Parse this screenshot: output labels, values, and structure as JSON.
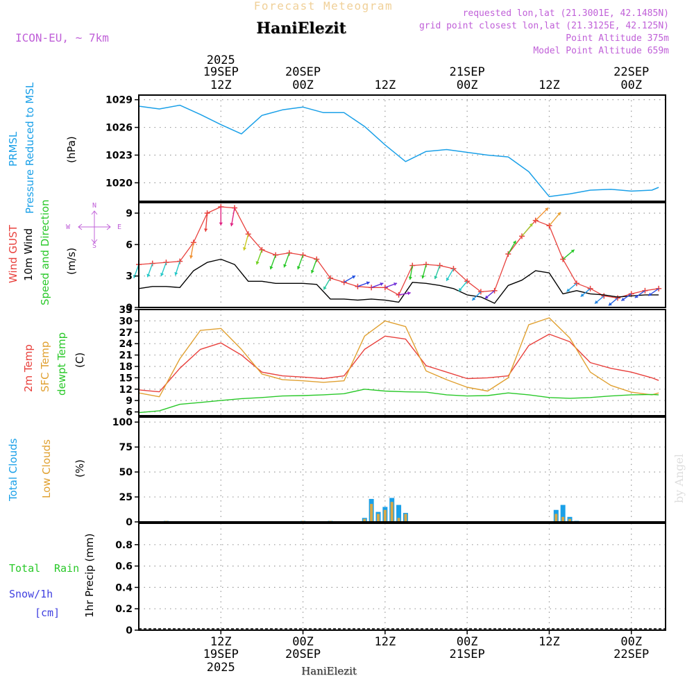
{
  "header": {
    "forecast_title": "Forecast Meteogram",
    "location_name": "HaniElezit",
    "model_label": "ICON-EU, ~ 7km",
    "requested": "requested lon,lat (21.3001E, 42.1485N)",
    "grid_point": "grid point closest lon,lat (21.3125E, 42.125N)",
    "point_altitude": "Point Altitude 375m",
    "model_altitude": "Model Point Altitude 659m",
    "footer_name": "HaniElezit",
    "watermark": "by Angel"
  },
  "colors": {
    "pressure": "#1aa0e8",
    "gust": "#e8403c",
    "wind": "#000000",
    "t2m": "#e8403c",
    "sfc": "#e0a030",
    "dewpt": "#28c828",
    "total_clouds": "#1aa0e8",
    "low_clouds": "#d8a848",
    "rain": "#28c828",
    "snow": "#4040e0",
    "label_purple": "#c060d8",
    "grid": "#888888"
  },
  "time_axis": {
    "top": [
      {
        "h": 12,
        "line1": "2025",
        "line2": "19SEP",
        "line3": "12Z"
      },
      {
        "h": 24,
        "line1": "",
        "line2": "20SEP",
        "line3": "00Z"
      },
      {
        "h": 36,
        "line1": "",
        "line2": "",
        "line3": "12Z"
      },
      {
        "h": 48,
        "line1": "",
        "line2": "21SEP",
        "line3": "00Z"
      },
      {
        "h": 60,
        "line1": "",
        "line2": "",
        "line3": "12Z"
      },
      {
        "h": 72,
        "line1": "",
        "line2": "22SEP",
        "line3": "00Z"
      }
    ],
    "bottom": [
      {
        "h": 12,
        "line1": "12Z",
        "line2": "19SEP",
        "line3": "2025"
      },
      {
        "h": 24,
        "line1": "00Z",
        "line2": "20SEP",
        "line3": ""
      },
      {
        "h": 36,
        "line1": "12Z",
        "line2": "",
        "line3": ""
      },
      {
        "h": 48,
        "line1": "00Z",
        "line2": "21SEP",
        "line3": ""
      },
      {
        "h": 60,
        "line1": "12Z",
        "line2": "",
        "line3": ""
      },
      {
        "h": 72,
        "line1": "00Z",
        "line2": "22SEP",
        "line3": ""
      }
    ]
  },
  "panel_labels": {
    "pressure": {
      "line1": "PRMSL",
      "line2": "Pressure Reduced to MSL",
      "unit": "(hPa)"
    },
    "wind": {
      "gust": "Wind GUST",
      "wind10m": "10m Wind",
      "speed_dir": "Speed and Direction",
      "unit": "(m/s)",
      "compass_n": "N",
      "compass_s": "S",
      "compass_e": "E",
      "compass_w": "W"
    },
    "temp": {
      "t2m": "2m Temp",
      "sfc": "SFC Temp",
      "dewpt": "dewpt Temp",
      "unit": "(C)"
    },
    "clouds": {
      "total": "Total Clouds",
      "low": "Low Clouds",
      "unit": "(%)"
    },
    "precip": {
      "rain_total": "Total",
      "rain": "Rain",
      "snow": "Snow/1h",
      "snow_unit": "[cm]",
      "precip_label": "1hr Precip (mm)"
    }
  },
  "chart_data": [
    {
      "type": "line",
      "name": "pressure",
      "title": "PRMSL Pressure Reduced to MSL",
      "ylabel": "(hPa)",
      "ylim": [
        1018,
        1029.5
      ],
      "yticks": [
        1020,
        1023,
        1026,
        1029
      ],
      "x_hours": [
        0,
        3,
        6,
        9,
        12,
        15,
        18,
        21,
        24,
        27,
        30,
        33,
        36,
        39,
        42,
        45,
        48,
        51,
        54,
        57,
        60,
        63,
        66,
        69,
        72,
        75,
        76
      ],
      "series": [
        {
          "name": "PRMSL",
          "values": [
            1028.3,
            1028.0,
            1028.4,
            1027.4,
            1026.3,
            1025.3,
            1027.3,
            1027.9,
            1028.2,
            1027.6,
            1027.6,
            1026.1,
            1024.1,
            1022.3,
            1023.4,
            1023.6,
            1023.3,
            1023.0,
            1022.8,
            1021.2,
            1018.5,
            1018.8,
            1019.2,
            1019.3,
            1019.1,
            1019.2,
            1019.5
          ]
        }
      ]
    },
    {
      "type": "line",
      "name": "wind",
      "title": "Wind GUST / 10m Wind Speed and Direction",
      "ylabel": "(m/s)",
      "ylim": [
        0,
        10
      ],
      "yticks": [
        0,
        3,
        6,
        9
      ],
      "x_hours": [
        0,
        2,
        4,
        6,
        8,
        10,
        12,
        14,
        16,
        18,
        20,
        22,
        24,
        26,
        28,
        30,
        32,
        34,
        36,
        38,
        40,
        42,
        44,
        46,
        48,
        50,
        52,
        54,
        56,
        58,
        60,
        62,
        64,
        66,
        68,
        70,
        72,
        74,
        76
      ],
      "series": [
        {
          "name": "Wind GUST",
          "values": [
            4.1,
            4.2,
            4.3,
            4.4,
            6.2,
            9.0,
            9.6,
            9.5,
            7.0,
            5.5,
            5.0,
            5.2,
            5.0,
            4.6,
            2.8,
            2.4,
            2.0,
            1.9,
            1.9,
            1.2,
            4.0,
            4.1,
            4.0,
            3.7,
            2.5,
            1.5,
            1.6,
            5.1,
            6.8,
            8.3,
            7.8,
            4.6,
            2.3,
            1.8,
            1.1,
            0.9,
            1.3,
            1.6,
            1.8
          ]
        },
        {
          "name": "10m Wind",
          "values": [
            1.8,
            2.0,
            2.0,
            1.9,
            3.5,
            4.3,
            4.6,
            4.1,
            2.5,
            2.5,
            2.3,
            2.3,
            2.3,
            2.2,
            0.8,
            0.8,
            0.7,
            0.8,
            0.7,
            0.5,
            2.4,
            2.3,
            2.1,
            1.8,
            1.2,
            1.0,
            0.4,
            2.1,
            2.6,
            3.5,
            3.3,
            1.3,
            1.6,
            1.3,
            1.2,
            1.0,
            1.1,
            1.2,
            1.2
          ]
        }
      ],
      "wind_barbs": [
        {
          "h": 0,
          "dir_from": 20,
          "color": "#22c8c8"
        },
        {
          "h": 2,
          "dir_from": 20,
          "color": "#22c8c8"
        },
        {
          "h": 4,
          "dir_from": 20,
          "color": "#22c8c8"
        },
        {
          "h": 6,
          "dir_from": 18,
          "color": "#22c8c8"
        },
        {
          "h": 8,
          "dir_from": 10,
          "color": "#f09030"
        },
        {
          "h": 10,
          "dir_from": 5,
          "color": "#e8403c"
        },
        {
          "h": 12,
          "dir_from": 0,
          "color": "#e02080"
        },
        {
          "h": 14,
          "dir_from": 10,
          "color": "#e02080"
        },
        {
          "h": 16,
          "dir_from": 15,
          "color": "#c8c820"
        },
        {
          "h": 18,
          "dir_from": 20,
          "color": "#70d020"
        },
        {
          "h": 20,
          "dir_from": 20,
          "color": "#28c828"
        },
        {
          "h": 22,
          "dir_from": 20,
          "color": "#28c828"
        },
        {
          "h": 24,
          "dir_from": 20,
          "color": "#28c828"
        },
        {
          "h": 26,
          "dir_from": 20,
          "color": "#28c828"
        },
        {
          "h": 28,
          "dir_from": 30,
          "color": "#28c8a0"
        },
        {
          "h": 30,
          "dir_from": 240,
          "color": "#2050e0"
        },
        {
          "h": 32,
          "dir_from": 250,
          "color": "#3040e0"
        },
        {
          "h": 34,
          "dir_from": 250,
          "color": "#6030d8"
        },
        {
          "h": 36,
          "dir_from": 250,
          "color": "#7030d8"
        },
        {
          "h": 38,
          "dir_from": 260,
          "color": "#9020d0"
        },
        {
          "h": 40,
          "dir_from": 10,
          "color": "#28c828"
        },
        {
          "h": 42,
          "dir_from": 15,
          "color": "#28c828"
        },
        {
          "h": 44,
          "dir_from": 20,
          "color": "#28c8a0"
        },
        {
          "h": 46,
          "dir_from": 30,
          "color": "#22c8c8"
        },
        {
          "h": 48,
          "dir_from": 40,
          "color": "#22c8c8"
        },
        {
          "h": 50,
          "dir_from": 45,
          "color": "#2090e0"
        },
        {
          "h": 52,
          "dir_from": 50,
          "color": "#6030d8"
        },
        {
          "h": 54,
          "dir_from": 210,
          "color": "#28c828"
        },
        {
          "h": 56,
          "dir_from": 220,
          "color": "#a0d030"
        },
        {
          "h": 58,
          "dir_from": 225,
          "color": "#f09030"
        },
        {
          "h": 60,
          "dir_from": 220,
          "color": "#e8a030"
        },
        {
          "h": 62,
          "dir_from": 230,
          "color": "#28c828"
        },
        {
          "h": 64,
          "dir_from": 50,
          "color": "#22a0e0"
        },
        {
          "h": 66,
          "dir_from": 50,
          "color": "#2090e0"
        },
        {
          "h": 68,
          "dir_from": 50,
          "color": "#2080e0"
        },
        {
          "h": 70,
          "dir_from": 50,
          "color": "#2060e0"
        },
        {
          "h": 72,
          "dir_from": 55,
          "color": "#3050e0"
        },
        {
          "h": 74,
          "dir_from": 55,
          "color": "#3050e0"
        },
        {
          "h": 76,
          "dir_from": 55,
          "color": "#3050e0"
        }
      ]
    },
    {
      "type": "line",
      "name": "temperature",
      "title": "2m Temp / SFC Temp / dewpt Temp",
      "ylabel": "(C)",
      "ylim": [
        5,
        33
      ],
      "yticks": [
        6,
        9,
        12,
        15,
        18,
        21,
        24,
        27,
        30,
        33
      ],
      "x_hours": [
        0,
        3,
        6,
        9,
        12,
        15,
        18,
        21,
        24,
        27,
        30,
        33,
        36,
        39,
        42,
        45,
        48,
        51,
        54,
        57,
        60,
        63,
        66,
        69,
        72,
        75,
        76
      ],
      "series": [
        {
          "name": "2m Temp",
          "values": [
            11.8,
            11.3,
            17.5,
            22.5,
            24.2,
            21.0,
            16.5,
            15.5,
            15.2,
            14.8,
            15.5,
            22.5,
            26.0,
            25.2,
            18.2,
            16.5,
            14.8,
            15.0,
            15.5,
            23.5,
            26.5,
            24.5,
            19.0,
            17.5,
            16.5,
            15.0,
            14.3
          ]
        },
        {
          "name": "SFC Temp",
          "values": [
            11.0,
            10.0,
            20.0,
            27.5,
            28.0,
            22.5,
            16.0,
            14.5,
            14.2,
            13.8,
            14.2,
            26.0,
            30.0,
            28.5,
            16.8,
            14.5,
            12.5,
            11.5,
            15.0,
            29.0,
            30.8,
            25.5,
            16.5,
            13.0,
            11.2,
            10.5,
            11.0
          ]
        },
        {
          "name": "dewpt Temp",
          "values": [
            5.8,
            6.3,
            8.0,
            8.5,
            9.0,
            9.5,
            9.8,
            10.2,
            10.3,
            10.5,
            10.8,
            12.0,
            11.5,
            11.3,
            11.2,
            10.5,
            10.2,
            10.3,
            11.0,
            10.5,
            9.8,
            9.6,
            9.8,
            10.2,
            10.5,
            10.6,
            10.5
          ]
        }
      ]
    },
    {
      "type": "bar",
      "name": "clouds",
      "title": "Total Clouds / Low Clouds",
      "ylabel": "(%)",
      "ylim": [
        0,
        105
      ],
      "yticks": [
        0,
        25,
        50,
        75,
        100
      ],
      "x_hours": [
        4,
        24,
        28,
        33,
        34,
        35,
        36,
        37,
        38,
        39,
        40,
        61,
        62,
        63,
        64
      ],
      "series": [
        {
          "name": "Total Clouds",
          "values": [
            1,
            1,
            1,
            4,
            23,
            10,
            15,
            24,
            17,
            9,
            0,
            12,
            17,
            5,
            1
          ]
        },
        {
          "name": "Low Clouds",
          "values": [
            1,
            1,
            1,
            3,
            18,
            8,
            12,
            20,
            4,
            8,
            0,
            8,
            5,
            3,
            0
          ]
        }
      ]
    },
    {
      "type": "bar",
      "name": "precipitation",
      "title": "1hr Precip (mm)",
      "ylabel": "1hr Precip (mm)",
      "ylim": [
        0,
        1.0
      ],
      "yticks": [
        0,
        0.2,
        0.4,
        0.6,
        0.8
      ],
      "x_hours": [],
      "series": [
        {
          "name": "Rain",
          "values": []
        },
        {
          "name": "Snow/1h",
          "values": []
        }
      ]
    }
  ]
}
